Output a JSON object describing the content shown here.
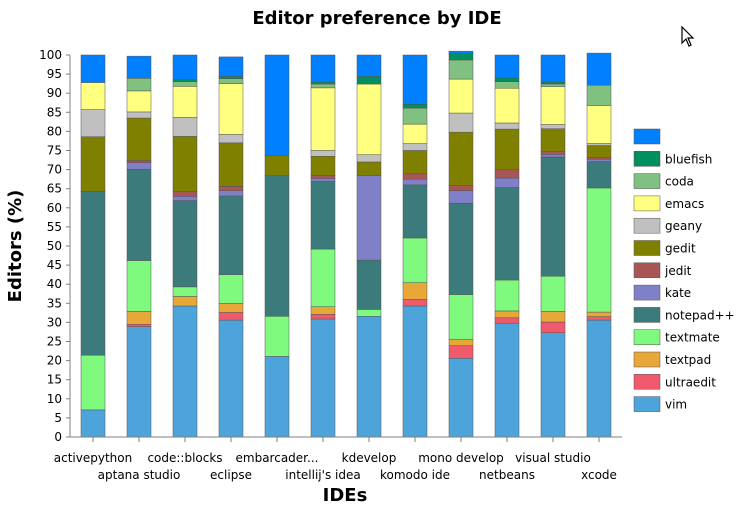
{
  "chart_data": {
    "type": "bar",
    "stacked": true,
    "title": "Editor preference by IDE",
    "xlabel": "IDEs",
    "ylabel": "Editors (%)",
    "ylim": [
      0,
      100
    ],
    "yticks": [
      0,
      5,
      10,
      15,
      20,
      25,
      30,
      35,
      40,
      45,
      50,
      55,
      60,
      65,
      70,
      75,
      80,
      85,
      90,
      95,
      100
    ],
    "grid": false,
    "legend_position": "right",
    "categories": [
      "activepython",
      "aptana studio",
      "code::blocks",
      "eclipse",
      "embarcader...",
      "intellij's idea",
      "kdevelop",
      "komodo ide",
      "mono develop",
      "netbeans",
      "visual studio",
      "xcode"
    ],
    "series": [
      {
        "name": "vim",
        "color": "#4da4db",
        "values": [
          7.1,
          28.9,
          34.3,
          30.6,
          21.1,
          30.9,
          31.6,
          34.3,
          20.6,
          29.8,
          27.3,
          30.6
        ]
      },
      {
        "name": "ultraedit",
        "color": "#f05a6c",
        "values": [
          0,
          0.6,
          0,
          2,
          0,
          1.2,
          0,
          1.7,
          3.3,
          1.4,
          2.8,
          0.9
        ]
      },
      {
        "name": "textpad",
        "color": "#e8a838",
        "values": [
          0,
          3.4,
          2.5,
          2.4,
          0,
          2,
          0,
          4.4,
          1.7,
          1.8,
          2.8,
          1.2
        ]
      },
      {
        "name": "textmate",
        "color": "#7ffa7f",
        "values": [
          14.3,
          13.3,
          2.5,
          7.5,
          10.5,
          15.1,
          1.8,
          11.7,
          11.7,
          8.1,
          9.2,
          32.5
        ]
      },
      {
        "name": "notepad++",
        "color": "#3b7b7b",
        "values": [
          42.9,
          23.9,
          22.6,
          20.6,
          36.8,
          17.7,
          12.9,
          13.9,
          23.9,
          24.2,
          31.2,
          6.9
        ]
      },
      {
        "name": "kate",
        "color": "#8080c8",
        "values": [
          0,
          1.7,
          1.1,
          1.4,
          0,
          0.8,
          22.1,
          1.5,
          3.3,
          2.5,
          0.7,
          0.6
        ]
      },
      {
        "name": "jedit",
        "color": "#a85555",
        "values": [
          0,
          0.6,
          1.3,
          1.1,
          0,
          0.8,
          0,
          1.4,
          1.4,
          2.2,
          0.8,
          0.5
        ]
      },
      {
        "name": "gedit",
        "color": "#808000",
        "values": [
          14.3,
          11.1,
          14.4,
          11.4,
          5.3,
          5,
          3.6,
          6.1,
          13.9,
          10.6,
          5.9,
          3.1
        ]
      },
      {
        "name": "geany",
        "color": "#c0c0c0",
        "values": [
          7.1,
          1.6,
          5,
          2.2,
          0,
          1.5,
          1.9,
          1.8,
          5,
          1.6,
          1.1,
          0.6
        ]
      },
      {
        "name": "emacs",
        "color": "#ffff80",
        "values": [
          7.1,
          5.5,
          8.1,
          13.3,
          0,
          16.4,
          18.5,
          5.1,
          8.9,
          9.1,
          9.9,
          9.9
        ]
      },
      {
        "name": "coda",
        "color": "#80c080",
        "values": [
          0,
          3.3,
          1.2,
          1.3,
          0,
          1,
          0,
          4.2,
          5,
          1.7,
          0.7,
          5.3
        ]
      },
      {
        "name": "bluefish",
        "color": "#009060",
        "values": [
          0,
          0,
          0.6,
          0.6,
          0,
          0.5,
          2,
          1,
          1.7,
          1,
          0.5,
          0
        ]
      },
      {
        "name": "",
        "color": "#0080ff",
        "values": [
          7.2,
          5.8,
          6.4,
          5.1,
          26.3,
          7.1,
          5.6,
          12.9,
          0.6,
          6,
          7.1,
          8.4
        ]
      }
    ],
    "legend_order": [
      "",
      "bluefish",
      "coda",
      "emacs",
      "geany",
      "gedit",
      "jedit",
      "kate",
      "notepad++",
      "textmate",
      "textpad",
      "ultraedit",
      "vim"
    ]
  },
  "icons": {
    "cursor": "mouse-pointer-icon"
  }
}
